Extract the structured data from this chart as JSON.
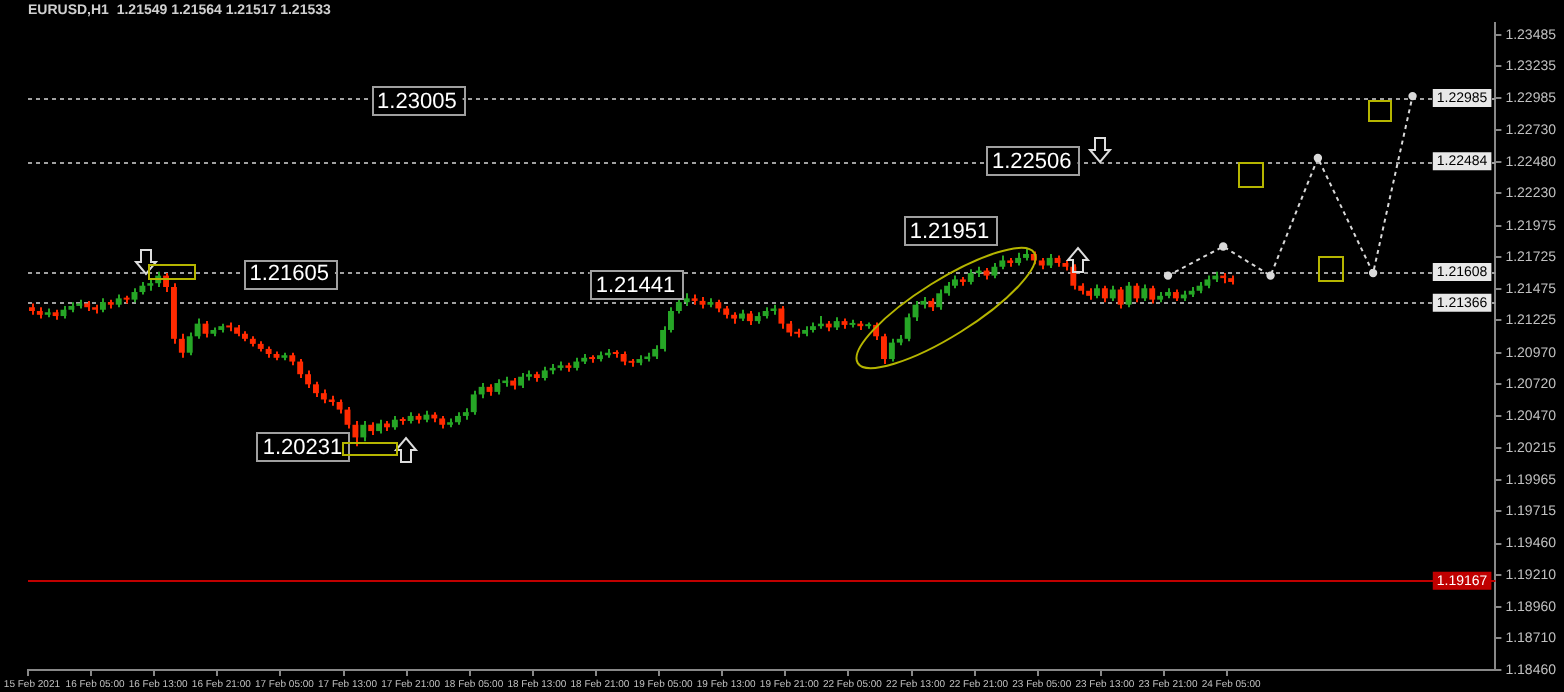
{
  "chart_data": {
    "type": "candlestick",
    "title": "EURUSD,H1  1.21549 1.21564 1.21517 1.21533",
    "categories": [
      "15 Feb 2021",
      null,
      null,
      null,
      null,
      null,
      null,
      null,
      "16 Feb 05:00",
      null,
      null,
      null,
      null,
      null,
      null,
      null,
      "16 Feb 13:00",
      null,
      null,
      null,
      null,
      null,
      null,
      null,
      "16 Feb 21:00",
      null,
      null,
      null,
      null,
      null,
      null,
      null,
      "17 Feb 05:00",
      null,
      null,
      null,
      null,
      null,
      null,
      null,
      "17 Feb 13:00",
      null,
      null,
      null,
      null,
      null,
      null,
      null,
      "17 Feb 21:00",
      null,
      null,
      null,
      null,
      null,
      null,
      null,
      "18 Feb 05:00",
      null,
      null,
      null,
      null,
      null,
      null,
      null,
      "18 Feb 13:00",
      null,
      null,
      null,
      null,
      null,
      null,
      null,
      "18 Feb 21:00",
      null,
      null,
      null,
      null,
      null,
      null,
      null,
      "19 Feb 05:00",
      null,
      null,
      null,
      null,
      null,
      null,
      null,
      "19 Feb 13:00",
      null,
      null,
      null,
      null,
      null,
      null,
      null,
      "19 Feb 21:00",
      null,
      null,
      null,
      null,
      null,
      null,
      null,
      "22 Feb 05:00",
      null,
      null,
      null,
      null,
      null,
      null,
      null,
      "22 Feb 13:00",
      null,
      null,
      null,
      null,
      null,
      null,
      null,
      "22 Feb 21:00",
      null,
      null,
      null,
      null,
      null,
      null,
      null,
      "23 Feb 05:00",
      null,
      null,
      null,
      null,
      null,
      null,
      null,
      "23 Feb 13:00",
      null,
      null,
      null,
      null,
      null,
      null,
      null,
      "23 Feb 21:00",
      null,
      null,
      null,
      null,
      null,
      null,
      null,
      "24 Feb 05:00",
      null,
      null,
      null,
      null,
      null,
      null,
      null,
      null,
      null,
      null,
      null,
      null,
      null,
      null,
      null,
      null,
      null,
      null,
      null,
      null,
      null,
      null,
      null,
      null,
      null,
      null,
      null,
      null,
      null,
      null,
      null,
      null,
      null
    ],
    "ohlc": [
      [
        1.2133,
        1.2136,
        1.2127,
        1.213
      ],
      [
        1.213,
        1.2133,
        1.2124,
        1.2127
      ],
      [
        1.2127,
        1.2132,
        1.2125,
        1.2129
      ],
      [
        1.2129,
        1.2131,
        1.2123,
        1.2126
      ],
      [
        1.2126,
        1.2134,
        1.2124,
        1.2131
      ],
      [
        1.2131,
        1.2137,
        1.2129,
        1.2134
      ],
      [
        1.2134,
        1.2139,
        1.2132,
        1.2136
      ],
      [
        1.2136,
        1.2138,
        1.213,
        1.2133
      ],
      [
        1.2133,
        1.2135,
        1.2128,
        1.2131
      ],
      [
        1.2131,
        1.214,
        1.2129,
        1.2137
      ],
      [
        1.2137,
        1.2139,
        1.2132,
        1.2135
      ],
      [
        1.2135,
        1.2143,
        1.2133,
        1.214
      ],
      [
        1.214,
        1.2142,
        1.2136,
        1.2139
      ],
      [
        1.2139,
        1.2148,
        1.2137,
        1.2145
      ],
      [
        1.2145,
        1.2153,
        1.2143,
        1.215
      ],
      [
        1.215,
        1.2156,
        1.2146,
        1.2152
      ],
      [
        1.2152,
        1.2161,
        1.2149,
        1.2158
      ],
      [
        1.2158,
        1.216,
        1.2145,
        1.2149
      ],
      [
        1.2149,
        1.2152,
        1.2104,
        1.2108
      ],
      [
        1.2108,
        1.2112,
        1.2093,
        1.2097
      ],
      [
        1.2097,
        1.2113,
        1.2095,
        1.211
      ],
      [
        1.211,
        1.2124,
        1.2108,
        1.212
      ],
      [
        1.212,
        1.2122,
        1.2109,
        1.2112
      ],
      [
        1.2112,
        1.2117,
        1.211,
        1.2115
      ],
      [
        1.2115,
        1.212,
        1.2113,
        1.2118
      ],
      [
        1.2118,
        1.2121,
        1.2114,
        1.2117
      ],
      [
        1.2117,
        1.2119,
        1.211,
        1.2112
      ],
      [
        1.2112,
        1.2114,
        1.2106,
        1.2108
      ],
      [
        1.2108,
        1.211,
        1.2102,
        1.2104
      ],
      [
        1.2104,
        1.2106,
        1.2098,
        1.21
      ],
      [
        1.21,
        1.2102,
        1.2093,
        1.2096
      ],
      [
        1.2096,
        1.2098,
        1.2091,
        1.2093
      ],
      [
        1.2093,
        1.2097,
        1.2091,
        1.2095
      ],
      [
        1.2095,
        1.2097,
        1.2087,
        1.209
      ],
      [
        1.209,
        1.2092,
        1.2077,
        1.208
      ],
      [
        1.208,
        1.2083,
        1.2069,
        1.2072
      ],
      [
        1.2072,
        1.2074,
        1.2062,
        1.2065
      ],
      [
        1.2065,
        1.2068,
        1.2057,
        1.206
      ],
      [
        1.206,
        1.2063,
        1.2055,
        1.2058
      ],
      [
        1.2058,
        1.206,
        1.2049,
        1.2052
      ],
      [
        1.2052,
        1.2054,
        1.2037,
        1.204
      ],
      [
        1.204,
        1.2043,
        1.2023,
        1.203
      ],
      [
        1.203,
        1.2043,
        1.2027,
        1.204
      ],
      [
        1.204,
        1.2042,
        1.2032,
        1.2035
      ],
      [
        1.2035,
        1.2044,
        1.2033,
        1.2041
      ],
      [
        1.2041,
        1.2043,
        1.2035,
        1.2038
      ],
      [
        1.2038,
        1.2047,
        1.2036,
        1.2044
      ],
      [
        1.2044,
        1.2046,
        1.204,
        1.2043
      ],
      [
        1.2043,
        1.205,
        1.2041,
        1.2047
      ],
      [
        1.2047,
        1.2049,
        1.2041,
        1.2044
      ],
      [
        1.2044,
        1.2051,
        1.2042,
        1.2048
      ],
      [
        1.2048,
        1.205,
        1.2042,
        1.2045
      ],
      [
        1.2045,
        1.2047,
        1.2037,
        1.204
      ],
      [
        1.204,
        1.2045,
        1.2038,
        1.2042
      ],
      [
        1.2042,
        1.205,
        1.204,
        1.2047
      ],
      [
        1.2047,
        1.2053,
        1.2044,
        1.205
      ],
      [
        1.205,
        1.2067,
        1.2048,
        1.2064
      ],
      [
        1.2064,
        1.2073,
        1.2061,
        1.207
      ],
      [
        1.207,
        1.2072,
        1.2063,
        1.2066
      ],
      [
        1.2066,
        1.2076,
        1.2064,
        1.2073
      ],
      [
        1.2073,
        1.2078,
        1.207,
        1.2075
      ],
      [
        1.2075,
        1.2077,
        1.2068,
        1.2071
      ],
      [
        1.2071,
        1.2081,
        1.2069,
        1.2078
      ],
      [
        1.2078,
        1.2083,
        1.2075,
        1.208
      ],
      [
        1.208,
        1.2082,
        1.2074,
        1.2077
      ],
      [
        1.2077,
        1.2086,
        1.2075,
        1.2083
      ],
      [
        1.2083,
        1.2088,
        1.208,
        1.2085
      ],
      [
        1.2085,
        1.209,
        1.2083,
        1.2087
      ],
      [
        1.2087,
        1.2089,
        1.2082,
        1.2085
      ],
      [
        1.2085,
        1.2093,
        1.2083,
        1.209
      ],
      [
        1.209,
        1.2096,
        1.2088,
        1.2093
      ],
      [
        1.2093,
        1.2095,
        1.2089,
        1.2092
      ],
      [
        1.2092,
        1.2098,
        1.209,
        1.2095
      ],
      [
        1.2095,
        1.21,
        1.2093,
        1.2097
      ],
      [
        1.2097,
        1.2099,
        1.2093,
        1.2096
      ],
      [
        1.2096,
        1.2098,
        1.2087,
        1.209
      ],
      [
        1.209,
        1.2092,
        1.2086,
        1.2089
      ],
      [
        1.2089,
        1.2095,
        1.2087,
        1.2092
      ],
      [
        1.2092,
        1.2097,
        1.209,
        1.2094
      ],
      [
        1.2094,
        1.2103,
        1.2092,
        1.21
      ],
      [
        1.21,
        1.2118,
        1.2098,
        1.2115
      ],
      [
        1.2115,
        1.2133,
        1.2113,
        1.213
      ],
      [
        1.213,
        1.214,
        1.2128,
        1.2137
      ],
      [
        1.2137,
        1.2144,
        1.2134,
        1.214
      ],
      [
        1.214,
        1.2143,
        1.2135,
        1.2138
      ],
      [
        1.2138,
        1.2141,
        1.2132,
        1.2135
      ],
      [
        1.2135,
        1.214,
        1.2133,
        1.2137
      ],
      [
        1.2137,
        1.2139,
        1.2129,
        1.2132
      ],
      [
        1.2132,
        1.2134,
        1.2124,
        1.2127
      ],
      [
        1.2127,
        1.2129,
        1.212,
        1.2124
      ],
      [
        1.2124,
        1.2131,
        1.2122,
        1.2128
      ],
      [
        1.2128,
        1.213,
        1.2119,
        1.2122
      ],
      [
        1.2122,
        1.2129,
        1.212,
        1.2126
      ],
      [
        1.2126,
        1.2133,
        1.2124,
        1.213
      ],
      [
        1.213,
        1.2135,
        1.2127,
        1.2132
      ],
      [
        1.2132,
        1.2134,
        1.2116,
        1.212
      ],
      [
        1.212,
        1.2122,
        1.211,
        1.2113
      ],
      [
        1.2113,
        1.2116,
        1.2109,
        1.2112
      ],
      [
        1.2112,
        1.2118,
        1.211,
        1.2115
      ],
      [
        1.2115,
        1.2121,
        1.2113,
        1.2118
      ],
      [
        1.2118,
        1.2126,
        1.2116,
        1.212
      ],
      [
        1.212,
        1.2122,
        1.2114,
        1.2117
      ],
      [
        1.2117,
        1.2125,
        1.2115,
        1.2122
      ],
      [
        1.2122,
        1.2124,
        1.2116,
        1.2119
      ],
      [
        1.2119,
        1.2123,
        1.2117,
        1.212
      ],
      [
        1.212,
        1.2122,
        1.2115,
        1.2118
      ],
      [
        1.2118,
        1.2121,
        1.2116,
        1.2119
      ],
      [
        1.2119,
        1.2121,
        1.2107,
        1.211
      ],
      [
        1.211,
        1.2112,
        1.2088,
        1.2092
      ],
      [
        1.2092,
        1.2108,
        1.209,
        1.2105
      ],
      [
        1.2105,
        1.2111,
        1.2103,
        1.2108
      ],
      [
        1.2108,
        1.2128,
        1.2106,
        1.2125
      ],
      [
        1.2125,
        1.2138,
        1.2122,
        1.2135
      ],
      [
        1.2135,
        1.2141,
        1.2132,
        1.2138
      ],
      [
        1.2138,
        1.214,
        1.213,
        1.2133
      ],
      [
        1.2133,
        1.2147,
        1.2131,
        1.2144
      ],
      [
        1.2144,
        1.2153,
        1.2142,
        1.215
      ],
      [
        1.215,
        1.2158,
        1.2148,
        1.2155
      ],
      [
        1.2155,
        1.2157,
        1.215,
        1.2153
      ],
      [
        1.2153,
        1.2163,
        1.2151,
        1.216
      ],
      [
        1.216,
        1.2165,
        1.2157,
        1.2162
      ],
      [
        1.2162,
        1.2164,
        1.2155,
        1.2158
      ],
      [
        1.2158,
        1.2168,
        1.2156,
        1.2165
      ],
      [
        1.2165,
        1.2174,
        1.2163,
        1.217
      ],
      [
        1.217,
        1.2172,
        1.2165,
        1.2168
      ],
      [
        1.2168,
        1.2176,
        1.2166,
        1.2172
      ],
      [
        1.2172,
        1.218,
        1.217,
        1.2175
      ],
      [
        1.2175,
        1.2177,
        1.2167,
        1.217
      ],
      [
        1.217,
        1.2172,
        1.2163,
        1.2166
      ],
      [
        1.2166,
        1.2175,
        1.2164,
        1.2172
      ],
      [
        1.2172,
        1.2174,
        1.2165,
        1.2168
      ],
      [
        1.2168,
        1.217,
        1.2162,
        1.2165
      ],
      [
        1.2165,
        1.2167,
        1.2147,
        1.215
      ],
      [
        1.215,
        1.2152,
        1.2143,
        1.2146
      ],
      [
        1.2146,
        1.2148,
        1.2139,
        1.2142
      ],
      [
        1.2142,
        1.2151,
        1.214,
        1.2148
      ],
      [
        1.2148,
        1.215,
        1.2137,
        1.214
      ],
      [
        1.214,
        1.215,
        1.2138,
        1.2147
      ],
      [
        1.2147,
        1.2149,
        1.2132,
        1.2135
      ],
      [
        1.2135,
        1.2153,
        1.2133,
        1.215
      ],
      [
        1.215,
        1.2152,
        1.2137,
        1.214
      ],
      [
        1.214,
        1.2151,
        1.2138,
        1.2148
      ],
      [
        1.2148,
        1.215,
        1.2136,
        1.2139
      ],
      [
        1.2139,
        1.2145,
        1.2137,
        1.2142
      ],
      [
        1.2142,
        1.2148,
        1.214,
        1.2145
      ],
      [
        1.2145,
        1.2147,
        1.2138,
        1.214
      ],
      [
        1.214,
        1.2146,
        1.2138,
        1.2143
      ],
      [
        1.2143,
        1.2149,
        1.2141,
        1.2146
      ],
      [
        1.2146,
        1.2153,
        1.2144,
        1.215
      ],
      [
        1.215,
        1.2158,
        1.2148,
        1.2155
      ],
      [
        1.2155,
        1.2161,
        1.2153,
        1.2158
      ],
      [
        1.2158,
        1.216,
        1.2152,
        1.2156
      ],
      [
        1.2156,
        1.2158,
        1.2151,
        1.2153
      ],
      null,
      null,
      null,
      null,
      null,
      null,
      null,
      null,
      null,
      null,
      null,
      null,
      null,
      null,
      null,
      null,
      null,
      null,
      null,
      null,
      null,
      null,
      null,
      null,
      null,
      null,
      null,
      null,
      null,
      null,
      null,
      null,
      null
    ],
    "colors": [
      "#ff2a00",
      "#ff2a00",
      "#26a626",
      "#ff2a00",
      "#26a626",
      "#26a626",
      "#26a626",
      "#ff2a00",
      "#ff2a00",
      "#26a626",
      "#ff2a00",
      "#26a626",
      "#ff2a00",
      "#26a626",
      "#26a626",
      "#26a626",
      "#26a626",
      "#ff2a00",
      "#ff2a00",
      "#ff2a00",
      "#26a626",
      "#26a626",
      "#ff2a00",
      "#26a626",
      "#26a626",
      "#ff2a00",
      "#ff2a00",
      "#ff2a00",
      "#ff2a00",
      "#ff2a00",
      "#ff2a00",
      "#ff2a00",
      "#26a626",
      "#ff2a00",
      "#ff2a00",
      "#ff2a00",
      "#ff2a00",
      "#ff2a00",
      "#ff2a00",
      "#ff2a00",
      "#ff2a00",
      "#ff2a00",
      "#26a626",
      "#ff2a00",
      "#26a626",
      "#ff2a00",
      "#26a626",
      "#ff2a00",
      "#26a626",
      "#ff2a00",
      "#26a626",
      "#ff2a00",
      "#ff2a00",
      "#26a626",
      "#26a626",
      "#26a626",
      "#26a626",
      "#26a626",
      "#ff2a00",
      "#26a626",
      "#26a626",
      "#ff2a00",
      "#26a626",
      "#26a626",
      "#ff2a00",
      "#26a626",
      "#26a626",
      "#26a626",
      "#ff2a00",
      "#26a626",
      "#26a626",
      "#ff2a00",
      "#26a626",
      "#26a626",
      "#ff2a00",
      "#ff2a00",
      "#ff2a00",
      "#26a626",
      "#26a626",
      "#26a626",
      "#26a626",
      "#26a626",
      "#26a626",
      "#26a626",
      "#ff2a00",
      "#ff2a00",
      "#26a626",
      "#ff2a00",
      "#ff2a00",
      "#ff2a00",
      "#26a626",
      "#ff2a00",
      "#26a626",
      "#26a626",
      "#26a626",
      "#ff2a00",
      "#ff2a00",
      "#ff2a00",
      "#26a626",
      "#26a626",
      "#26a626",
      "#ff2a00",
      "#26a626",
      "#ff2a00",
      "#26a626",
      "#ff2a00",
      "#26a626",
      "#ff2a00",
      "#ff2a00",
      "#26a626",
      "#26a626",
      "#26a626",
      "#26a626",
      "#26a626",
      "#ff2a00",
      "#26a626",
      "#26a626",
      "#26a626",
      "#ff2a00",
      "#26a626",
      "#26a626",
      "#ff2a00",
      "#26a626",
      "#26a626",
      "#ff2a00",
      "#26a626",
      "#26a626",
      "#ff2a00",
      "#ff2a00",
      "#26a626",
      "#ff2a00",
      "#ff2a00",
      "#ff2a00",
      "#ff2a00",
      "#ff2a00",
      "#26a626",
      "#ff2a00",
      "#26a626",
      "#ff2a00",
      "#26a626",
      "#ff2a00",
      "#26a626",
      "#ff2a00",
      "#26a626",
      "#26a626",
      "#ff2a00",
      "#26a626",
      "#26a626",
      "#26a626",
      "#26a626",
      "#26a626",
      "#ff2a00",
      "#ff2a00",
      null,
      null,
      null,
      null,
      null,
      null,
      null,
      null,
      null,
      null,
      null,
      null,
      null,
      null,
      null,
      null,
      null,
      null,
      null,
      null,
      null,
      null,
      null,
      null,
      null,
      null,
      null,
      null,
      null,
      null,
      null,
      null,
      null
    ],
    "series": [
      {
        "type": "line",
        "color": "#d9d9d9",
        "values": [
          null,
          null,
          null,
          null,
          null,
          null,
          null,
          null,
          null,
          null,
          null,
          null,
          null,
          null,
          null,
          null,
          null,
          null,
          null,
          null,
          null,
          null,
          null,
          null,
          null,
          null,
          null,
          null,
          null,
          null,
          null,
          null,
          null,
          null,
          null,
          null,
          null,
          null,
          null,
          null,
          null,
          null,
          null,
          null,
          null,
          null,
          null,
          null,
          null,
          null,
          null,
          null,
          null,
          null,
          null,
          null,
          null,
          null,
          null,
          null,
          null,
          null,
          null,
          null,
          null,
          null,
          null,
          null,
          null,
          null,
          null,
          null,
          null,
          null,
          null,
          null,
          null,
          null,
          null,
          null,
          null,
          null,
          null,
          null,
          null,
          null,
          null,
          null,
          null,
          null,
          null,
          null,
          null,
          null,
          null,
          null,
          null,
          null,
          null,
          null,
          null,
          null,
          null,
          null,
          null,
          null,
          null,
          null,
          null,
          null,
          null,
          null,
          null,
          null,
          null,
          null,
          null,
          null,
          null,
          null,
          null,
          null,
          null,
          null,
          null,
          null,
          null,
          null,
          null,
          null,
          null,
          null,
          null,
          null,
          null,
          null,
          null,
          null,
          null,
          null,
          null,
          null,
          null,
          null,
          1.2158,
          null,
          null,
          null,
          null,
          null,
          null,
          1.2181,
          null,
          null,
          null,
          null,
          null,
          1.2158,
          null,
          null,
          null,
          null,
          null,
          1.2251,
          null,
          null,
          null,
          null,
          null,
          null,
          1.216,
          null,
          null,
          null,
          null,
          1.23,
          null,
          null,
          null,
          null,
          null,
          null,
          null,
          null,
          null,
          null
        ]
      }
    ],
    "marker": "circle",
    "line_style": "dotted",
    "ylim": [
      1.1846,
      1.2358
    ],
    "yticks": [
      {
        "value": 1.1846,
        "label": "1.18460"
      },
      {
        "value": 1.1871,
        "label": "1.18710"
      },
      {
        "value": 1.1896,
        "label": "1.18960"
      },
      {
        "value": 1.1921,
        "label": "1.19210"
      },
      {
        "value": 1.1946,
        "label": "1.19460"
      },
      {
        "value": 1.19715,
        "label": "1.19715"
      },
      {
        "value": 1.19965,
        "label": "1.19965"
      },
      {
        "value": 1.20215,
        "label": "1.20215"
      },
      {
        "value": 1.2047,
        "label": "1.20470"
      },
      {
        "value": 1.2072,
        "label": "1.20720"
      },
      {
        "value": 1.2097,
        "label": "1.20970"
      },
      {
        "value": 1.21225,
        "label": "1.21225"
      },
      {
        "value": 1.21475,
        "label": "1.21475"
      },
      {
        "value": 1.21725,
        "label": "1.21725"
      },
      {
        "value": 1.21975,
        "label": "1.21975"
      },
      {
        "value": 1.2223,
        "label": "1.22230"
      },
      {
        "value": 1.2248,
        "label": "1.22480"
      },
      {
        "value": 1.2273,
        "label": "1.22730"
      },
      {
        "value": 1.22985,
        "label": "1.22985"
      },
      {
        "value": 1.23235,
        "label": "1.23235"
      },
      {
        "value": 1.23485,
        "label": "1.23485"
      }
    ],
    "ref_lines": [
      {
        "axis": "y",
        "value": 1.22985,
        "label": "1.22985",
        "color": "#a0a0a0",
        "line_style": "dotted"
      },
      {
        "axis": "y",
        "value": 1.22484,
        "label": "1.22484",
        "color": "#a0a0a0",
        "line_style": "dotted"
      },
      {
        "axis": "y",
        "value": 1.21608,
        "label": "1.21608",
        "color": "#a0a0a0",
        "line_style": "dotted"
      },
      {
        "axis": "y",
        "value": 1.21366,
        "label": "1.21366",
        "color": "#a0a0a0",
        "line_style": "dotted"
      },
      {
        "axis": "y",
        "value": 1.19167,
        "label": "1.19167",
        "color": "#c00000",
        "line_style": "solid"
      }
    ],
    "annotations": [
      "1.23005",
      "1.22506",
      "1.21951",
      "1.21605",
      "1.21441",
      "1.20231"
    ],
    "grid": false,
    "legend": false
  }
}
